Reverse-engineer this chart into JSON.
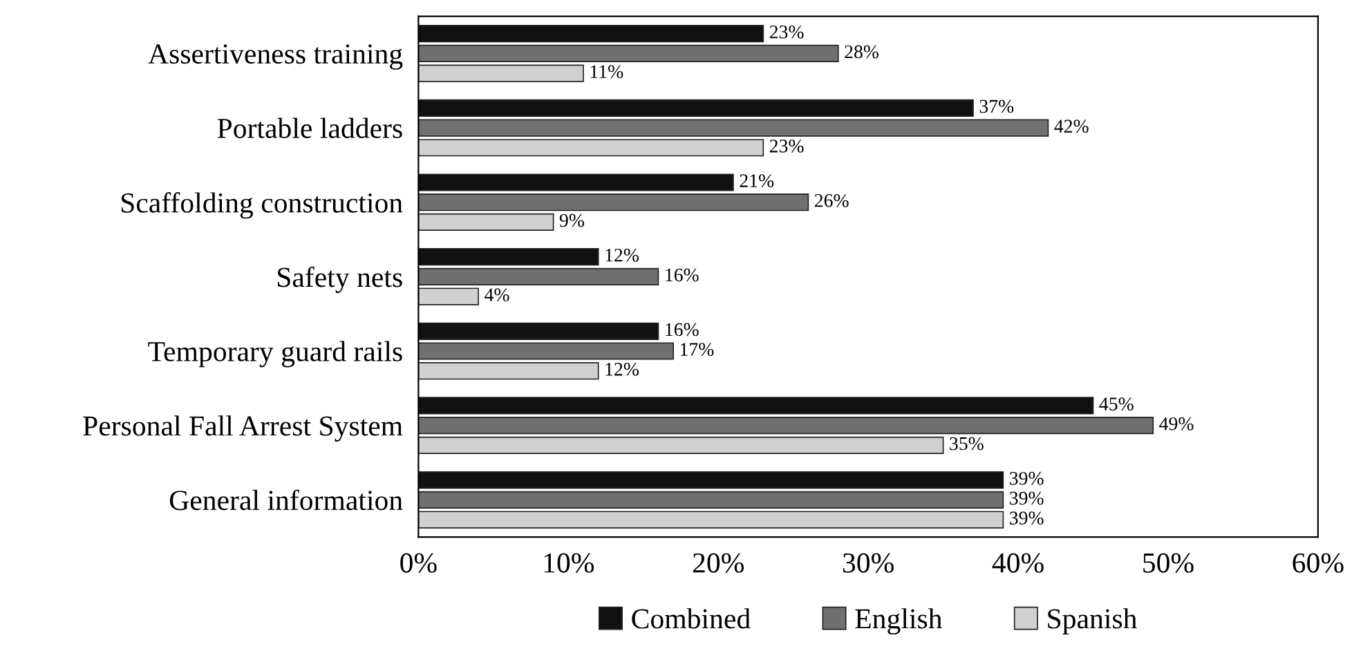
{
  "chart_data": {
    "type": "bar",
    "orientation": "horizontal",
    "categories": [
      "Assertiveness training",
      "Portable ladders",
      "Scaffolding construction",
      "Safety nets",
      "Temporary guard rails",
      "Personal Fall Arrest System",
      "General information"
    ],
    "series": [
      {
        "name": "Combined",
        "color": "#111111",
        "values": [
          23,
          37,
          21,
          12,
          16,
          45,
          39
        ],
        "value_labels": [
          "23%",
          "37%",
          "21%",
          "12%",
          "16%",
          "45%",
          "39%"
        ]
      },
      {
        "name": "English",
        "color": "#707070",
        "values": [
          28,
          42,
          26,
          16,
          17,
          49,
          39
        ],
        "value_labels": [
          "28%",
          "42%",
          "26%",
          "16%",
          "17%",
          "49%",
          "39%"
        ]
      },
      {
        "name": "Spanish",
        "color": "#d0d0d0",
        "values": [
          11,
          23,
          9,
          4,
          12,
          35,
          39
        ],
        "value_labels": [
          "11%",
          "23%",
          "9%",
          "4%",
          "12%",
          "35%",
          "39%"
        ]
      }
    ],
    "xlim": [
      0,
      60
    ],
    "xticks": [
      {
        "value": 0,
        "label": "0%"
      },
      {
        "value": 10,
        "label": "10%"
      },
      {
        "value": 20,
        "label": "20%"
      },
      {
        "value": 30,
        "label": "30%"
      },
      {
        "value": 40,
        "label": "40%"
      },
      {
        "value": 50,
        "label": "50%"
      },
      {
        "value": 60,
        "label": "60%"
      }
    ],
    "grid": false,
    "legend": "bottom"
  }
}
